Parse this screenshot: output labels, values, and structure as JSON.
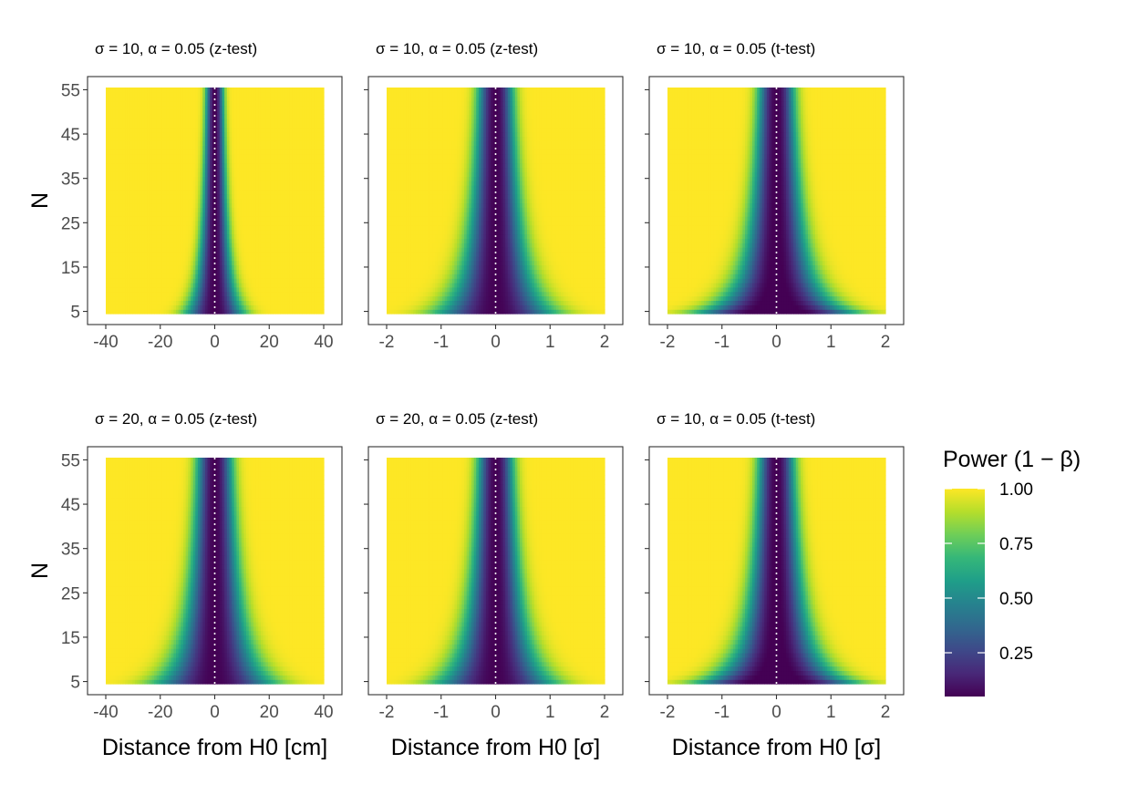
{
  "chart_data": {
    "type": "heatmap",
    "panels": [
      {
        "title": "σ = 10,  α = 0.05 (z-test)",
        "sigma": 10,
        "alpha": 0.05,
        "test": "z",
        "x_unit": "cm",
        "xlim": [
          -40,
          40
        ],
        "xticks": [
          "-40",
          "-20",
          "0",
          "20",
          "40"
        ],
        "ylim": [
          5,
          55
        ],
        "yticks": [
          "5",
          "15",
          "25",
          "35",
          "45",
          "55"
        ],
        "ylabel": "N",
        "xlabel": ""
      },
      {
        "title": "σ = 10,  α = 0.05 (z-test)",
        "sigma": 10,
        "alpha": 0.05,
        "test": "z",
        "x_unit": "σ",
        "xlim": [
          -2,
          2
        ],
        "xticks": [
          "-2",
          "-1",
          "0",
          "1",
          "2"
        ],
        "ylim": [
          5,
          55
        ],
        "yticks": [
          "",
          "",
          "",
          "",
          "",
          ""
        ],
        "ylabel": "",
        "xlabel": ""
      },
      {
        "title": "σ = 10,  α = 0.05 (t-test)",
        "sigma": 10,
        "alpha": 0.05,
        "test": "t",
        "x_unit": "σ",
        "xlim": [
          -2,
          2
        ],
        "xticks": [
          "-2",
          "-1",
          "0",
          "1",
          "2"
        ],
        "ylim": [
          5,
          55
        ],
        "yticks": [
          "",
          "",
          "",
          "",
          "",
          ""
        ],
        "ylabel": "",
        "xlabel": ""
      },
      {
        "title": "σ = 20,  α = 0.05 (z-test)",
        "sigma": 20,
        "alpha": 0.05,
        "test": "z",
        "x_unit": "cm",
        "xlim": [
          -40,
          40
        ],
        "xticks": [
          "-40",
          "-20",
          "0",
          "20",
          "40"
        ],
        "ylim": [
          5,
          55
        ],
        "yticks": [
          "5",
          "15",
          "25",
          "35",
          "45",
          "55"
        ],
        "ylabel": "N",
        "xlabel": "Distance from H0 [cm]"
      },
      {
        "title": "σ = 20,  α = 0.05 (z-test)",
        "sigma": 20,
        "alpha": 0.05,
        "test": "z",
        "x_unit": "σ",
        "xlim": [
          -2,
          2
        ],
        "xticks": [
          "-2",
          "-1",
          "0",
          "1",
          "2"
        ],
        "ylim": [
          5,
          55
        ],
        "yticks": [
          "",
          "",
          "",
          "",
          "",
          ""
        ],
        "ylabel": "",
        "xlabel": "Distance from H0 [σ]"
      },
      {
        "title": "σ = 10,  α = 0.05 (t-test)",
        "sigma": 10,
        "alpha": 0.05,
        "test": "t",
        "x_unit": "σ",
        "xlim": [
          -2,
          2
        ],
        "xticks": [
          "-2",
          "-1",
          "0",
          "1",
          "2"
        ],
        "ylim": [
          5,
          55
        ],
        "yticks": [
          "",
          "",
          "",
          "",
          "",
          ""
        ],
        "ylabel": "",
        "xlabel": "Distance from H0 [σ]"
      }
    ],
    "reference_line": {
      "x": 0,
      "style": "dotted",
      "color": "#ffffff"
    },
    "legend": {
      "title": "Power (1 − β)",
      "position": "right",
      "breaks": [
        "1.00",
        "0.75",
        "0.50",
        "0.25"
      ],
      "break_values": [
        1.0,
        0.75,
        0.5,
        0.25
      ],
      "range": [
        0.05,
        1.0
      ],
      "colormap": "viridis"
    },
    "grid": false,
    "colors": {
      "viridis": [
        "#440154",
        "#482878",
        "#3e4989",
        "#31688e",
        "#26828e",
        "#1f9e89",
        "#35b779",
        "#6ece58",
        "#b5de2b",
        "#fde725"
      ],
      "panel_border": "#333333",
      "tick_text": "#4d4d4d"
    }
  }
}
